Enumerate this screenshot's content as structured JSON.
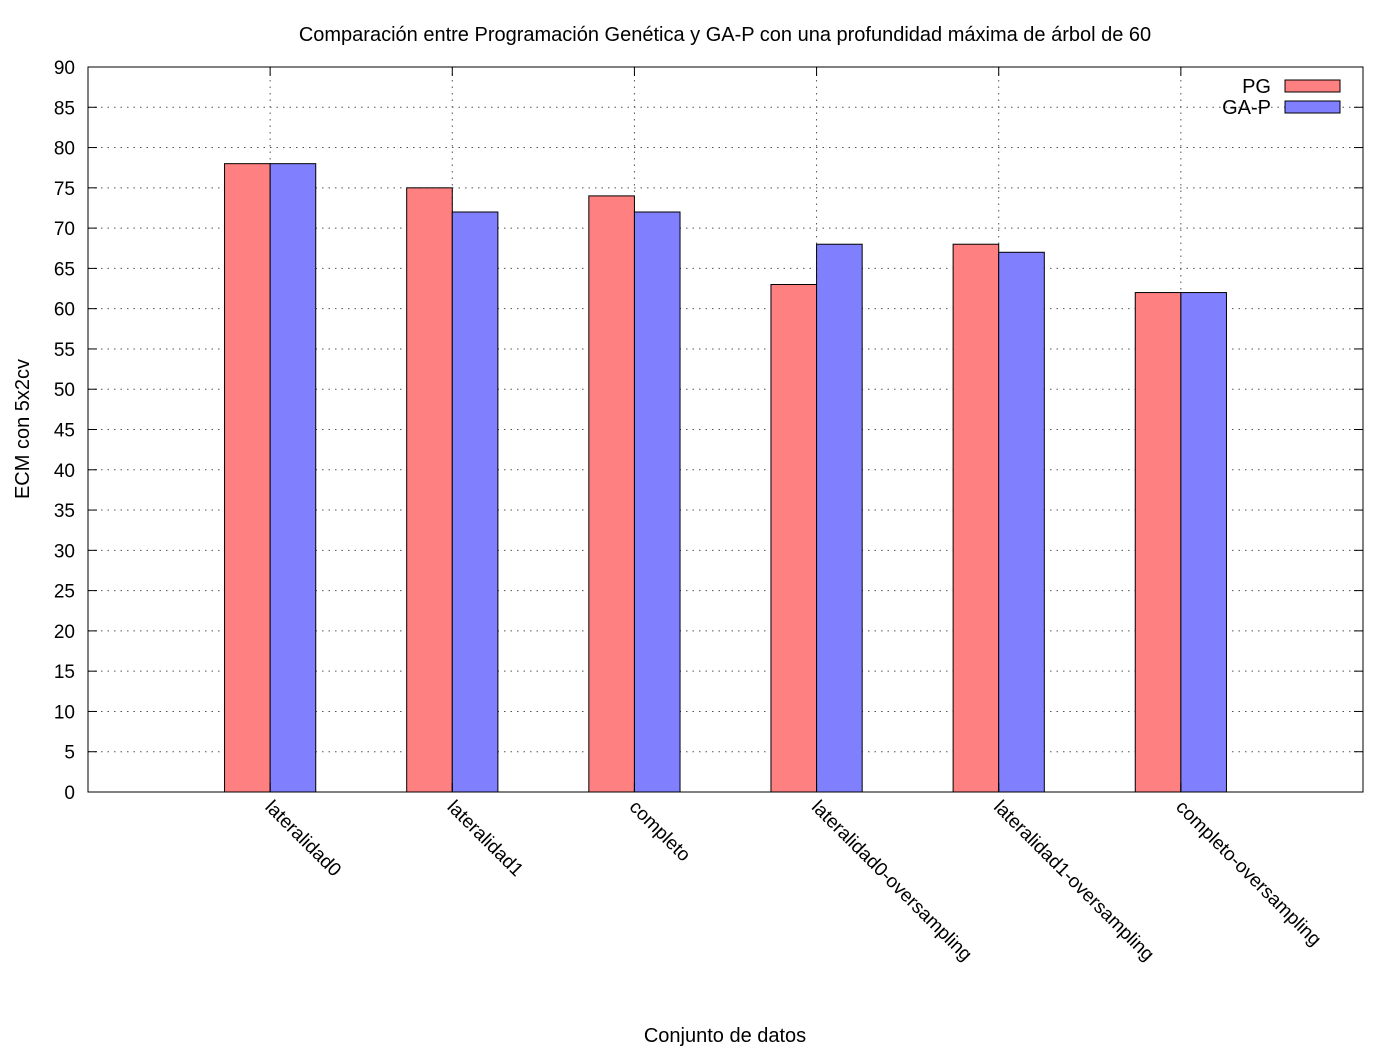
{
  "chart_data": {
    "type": "bar",
    "title": "Comparación entre Programación Genética y GA-P con una profundidad máxima de árbol de 60",
    "xlabel": "Conjunto de datos",
    "ylabel": "ECM con 5x2cv",
    "ylim": [
      0,
      90
    ],
    "yticks": [
      "0",
      "5",
      "10",
      "15",
      "20",
      "25",
      "30",
      "35",
      "40",
      "45",
      "50",
      "55",
      "60",
      "65",
      "70",
      "75",
      "80",
      "85",
      "90"
    ],
    "categories": [
      "lateralidad0",
      "lateralidad1",
      "completo",
      "lateralidad0-oversampling",
      "lateralidad1-oversampling",
      "completo-oversampling"
    ],
    "series": [
      {
        "name": "PG",
        "color": "#ff8080",
        "values": [
          78,
          75,
          74,
          63,
          68,
          62
        ]
      },
      {
        "name": "GA-P",
        "color": "#8080ff",
        "values": [
          78,
          72,
          72,
          68,
          67,
          62
        ]
      }
    ],
    "grid": true,
    "grid_style": "dotted",
    "legend_position": "top-right",
    "tick_label_rotation": "rotated-45-down"
  }
}
